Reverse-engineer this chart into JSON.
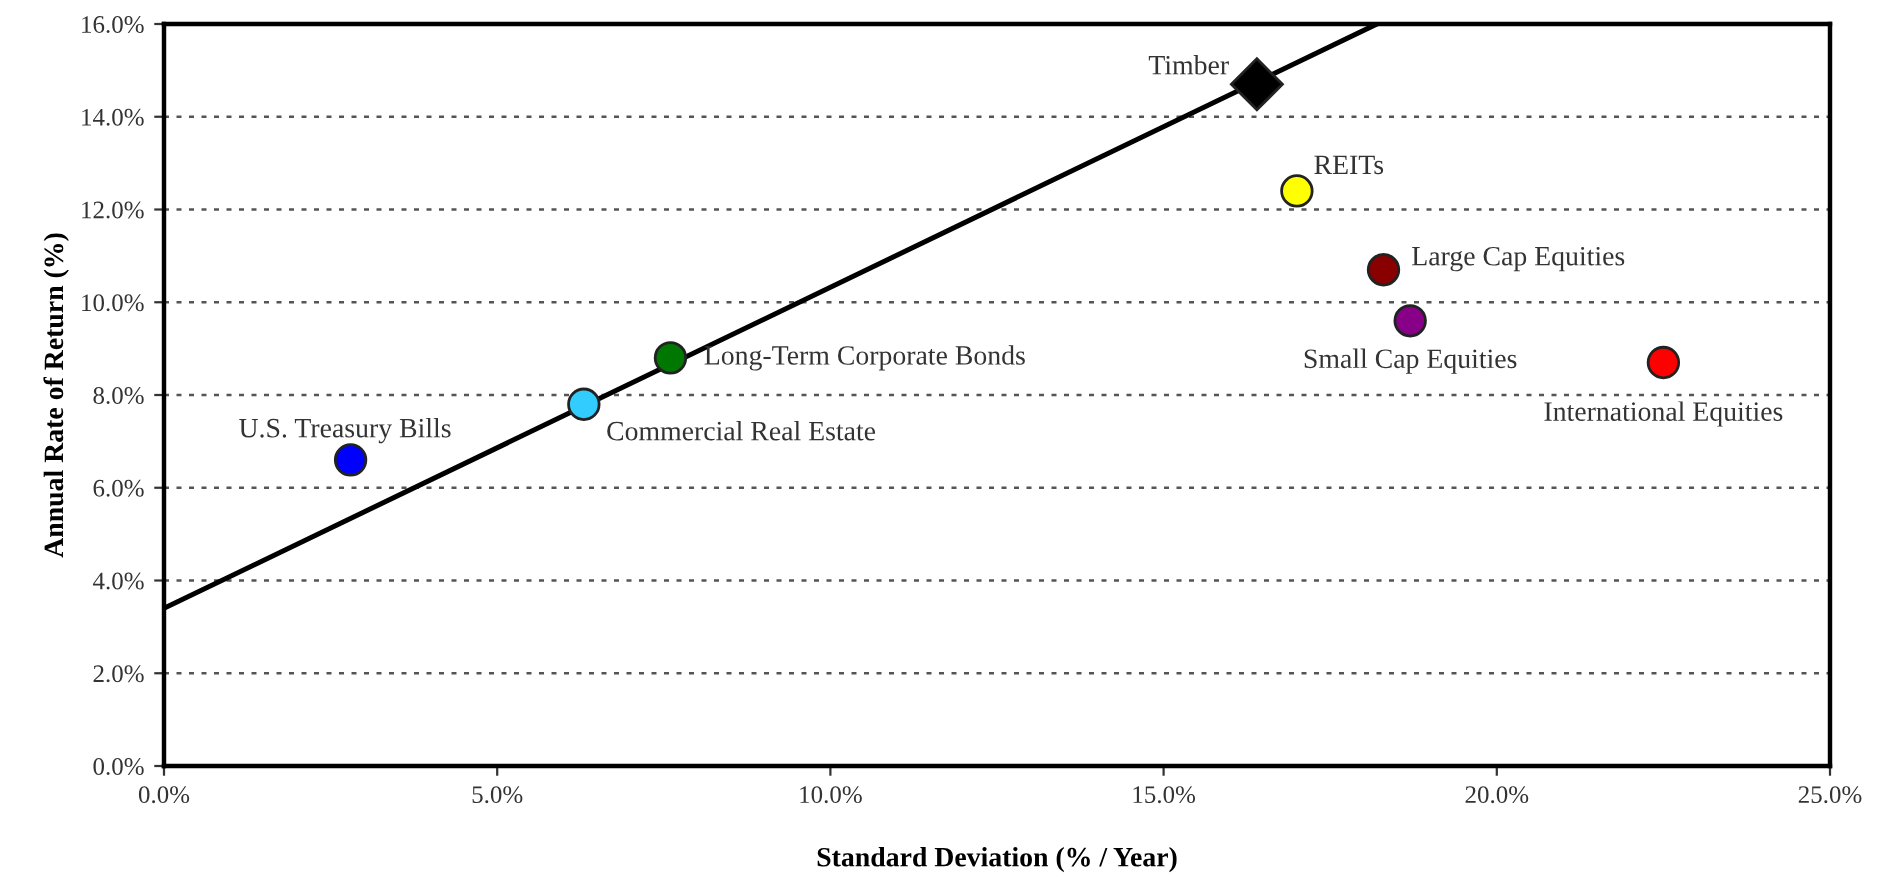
{
  "chart_data": {
    "type": "scatter",
    "xlabel": "Standard Deviation (% / Year)",
    "ylabel": "Annual Rate of Return (%)",
    "xlim": [
      0,
      25
    ],
    "ylim": [
      0,
      16
    ],
    "xticks": [
      {
        "value": 0,
        "label": "0.0%"
      },
      {
        "value": 5,
        "label": "5.0%"
      },
      {
        "value": 10,
        "label": "10.0%"
      },
      {
        "value": 15,
        "label": "15.0%"
      },
      {
        "value": 20,
        "label": "20.0%"
      },
      {
        "value": 25,
        "label": "25.0%"
      }
    ],
    "yticks": [
      {
        "value": 0,
        "label": "0.0%"
      },
      {
        "value": 2,
        "label": "2.0%"
      },
      {
        "value": 4,
        "label": "4.0%"
      },
      {
        "value": 6,
        "label": "6.0%"
      },
      {
        "value": 8,
        "label": "8.0%"
      },
      {
        "value": 10,
        "label": "10.0%"
      },
      {
        "value": 12,
        "label": "12.0%"
      },
      {
        "value": 14,
        "label": "14.0%"
      },
      {
        "value": 16,
        "label": "16.0%"
      }
    ],
    "grid": "y",
    "legend": false,
    "marker": "circle",
    "series": [
      {
        "type": "line",
        "color": "#000000",
        "marker": "none",
        "line_style": "solid",
        "x": [
          0,
          18.2
        ],
        "values": [
          3.4,
          16
        ]
      },
      {
        "name": "U.S. Treasury Bills",
        "color": "#0000ff",
        "x": [
          2.8
        ],
        "values": [
          6.6
        ]
      },
      {
        "name": "Commercial Real Estate",
        "color": "#33ccff",
        "x": [
          6.3
        ],
        "values": [
          7.8
        ]
      },
      {
        "name": "Long-Term Corporate Bonds",
        "color": "#007700",
        "x": [
          7.6
        ],
        "values": [
          8.8
        ]
      },
      {
        "name": "Timber",
        "color": "#000000",
        "marker": "diamond",
        "x": [
          16.4
        ],
        "values": [
          14.7
        ]
      },
      {
        "name": "REITs",
        "color": "#ffff00",
        "x": [
          17.0
        ],
        "values": [
          12.4
        ]
      },
      {
        "name": "Large Cap Equities",
        "color": "#880000",
        "x": [
          18.3
        ],
        "values": [
          10.7
        ]
      },
      {
        "name": "Small Cap Equities",
        "color": "#880088",
        "x": [
          18.7
        ],
        "values": [
          9.6
        ]
      },
      {
        "name": "International Equities",
        "color": "#ff0000",
        "x": [
          22.5
        ],
        "values": [
          8.7
        ]
      }
    ]
  }
}
